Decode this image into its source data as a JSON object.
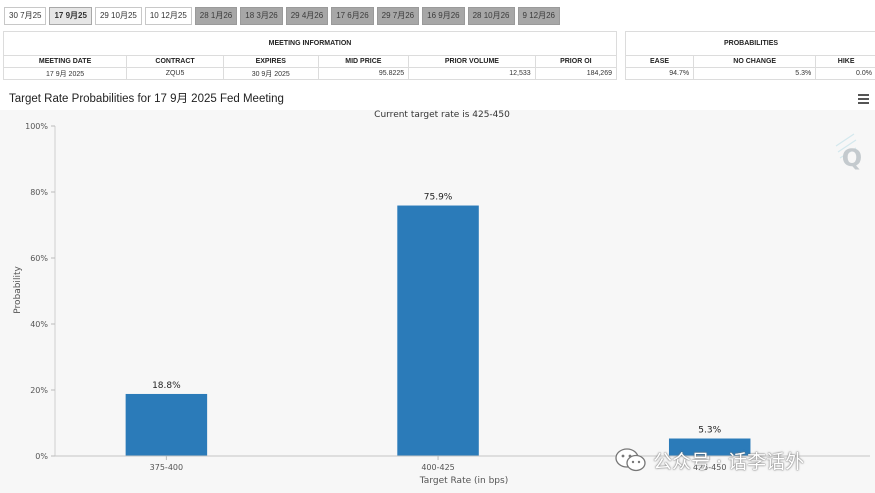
{
  "tabs": [
    {
      "label": "30 7月25",
      "state": "past"
    },
    {
      "label": "17 9月25",
      "state": "active"
    },
    {
      "label": "29 10月25",
      "state": "past"
    },
    {
      "label": "10 12月25",
      "state": "past"
    },
    {
      "label": "28 1月26",
      "state": "future"
    },
    {
      "label": "18 3月26",
      "state": "future"
    },
    {
      "label": "29 4月26",
      "state": "future"
    },
    {
      "label": "17 6月26",
      "state": "future"
    },
    {
      "label": "29 7月26",
      "state": "future"
    },
    {
      "label": "16 9月26",
      "state": "future"
    },
    {
      "label": "28 10月26",
      "state": "future"
    },
    {
      "label": "9 12月26",
      "state": "future"
    }
  ],
  "meeting_info": {
    "heading": "MEETING INFORMATION",
    "headers": [
      "MEETING DATE",
      "CONTRACT",
      "EXPIRES",
      "MID PRICE",
      "PRIOR VOLUME",
      "PRIOR OI"
    ],
    "row": [
      "17 9月 2025",
      "ZQU5",
      "30 9月 2025",
      "95.8225",
      "12,533",
      "184,269"
    ]
  },
  "probabilities": {
    "heading": "PROBABILITIES",
    "headers": [
      "EASE",
      "NO CHANGE",
      "HIKE"
    ],
    "row": [
      "94.7%",
      "5.3%",
      "0.0%"
    ]
  },
  "chart_title": "Target Rate Probabilities for 17 9月 2025 Fed Meeting",
  "watermark_text": "公众号 · 话李话外",
  "colors": {
    "bar": "#2b7bb9",
    "tab_future": "#a7a7a7"
  },
  "icons": [
    "menu-icon",
    "q-logo-icon",
    "wechat-icon"
  ],
  "chart_data": {
    "type": "bar",
    "subtitle": "Current target rate is 425-450",
    "xlabel": "Target Rate (in bps)",
    "ylabel": "Probability",
    "categories": [
      "375-400",
      "400-425",
      "425-450"
    ],
    "values": [
      18.8,
      75.9,
      5.3
    ],
    "data_labels": [
      "18.8%",
      "75.9%",
      "5.3%"
    ],
    "ylim": [
      0,
      100
    ],
    "yticks": [
      0,
      20,
      40,
      60,
      80,
      100
    ],
    "ytick_labels": [
      "0%",
      "20%",
      "40%",
      "60%",
      "80%",
      "100%"
    ],
    "grid": false,
    "legend": "none"
  }
}
